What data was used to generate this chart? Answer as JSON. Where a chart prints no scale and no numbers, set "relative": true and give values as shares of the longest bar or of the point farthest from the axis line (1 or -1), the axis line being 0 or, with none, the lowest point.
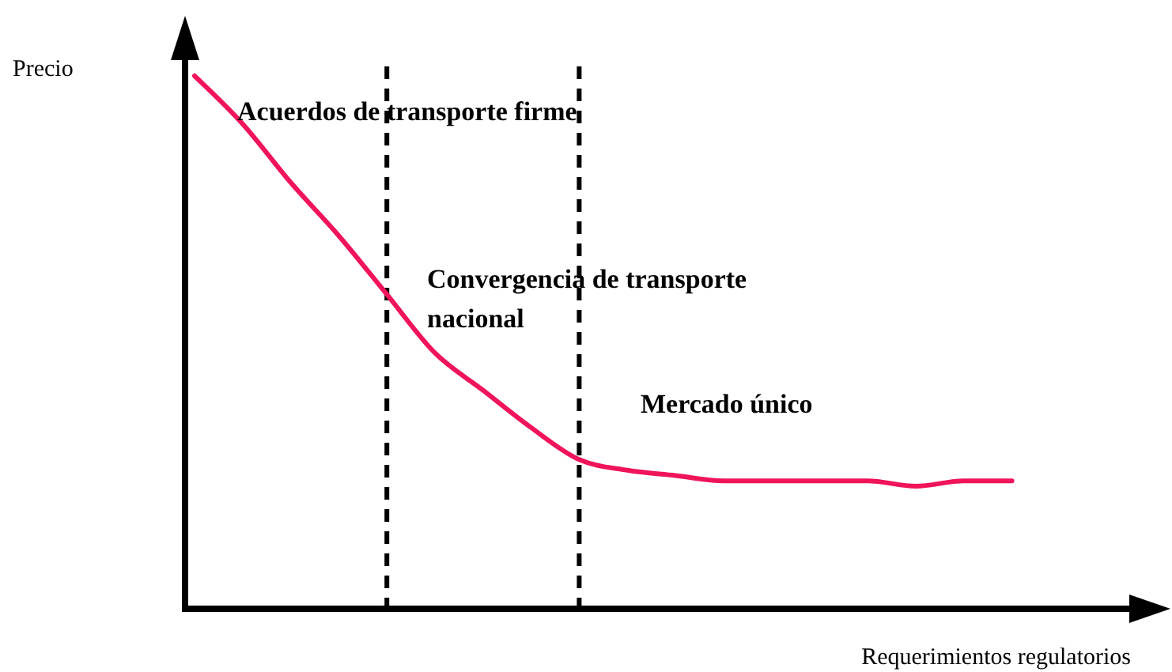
{
  "chart_data": {
    "type": "line",
    "relative": true,
    "ylabel": "Precio",
    "xlabel": "Requerimientos regulatorios",
    "categories": [
      null,
      null,
      null,
      null,
      null,
      null,
      null,
      null,
      null,
      null,
      null,
      null,
      null,
      null,
      null,
      null,
      null,
      null
    ],
    "series": [
      {
        "color": "#f0145a",
        "values": [
          1,
          0.91,
          0.8,
          0.7,
          0.59,
          0.48,
          0.41,
          0.34,
          0.28,
          0.26,
          0.25,
          0.24,
          0.24,
          0.24,
          0.24,
          0.23,
          0.24,
          0.24
        ]
      }
    ],
    "annotations": [
      "Acuerdos de transporte firme",
      "Convergencia de transporte nacional",
      "Mercado único"
    ],
    "marker": "none",
    "line_style": "solid"
  }
}
